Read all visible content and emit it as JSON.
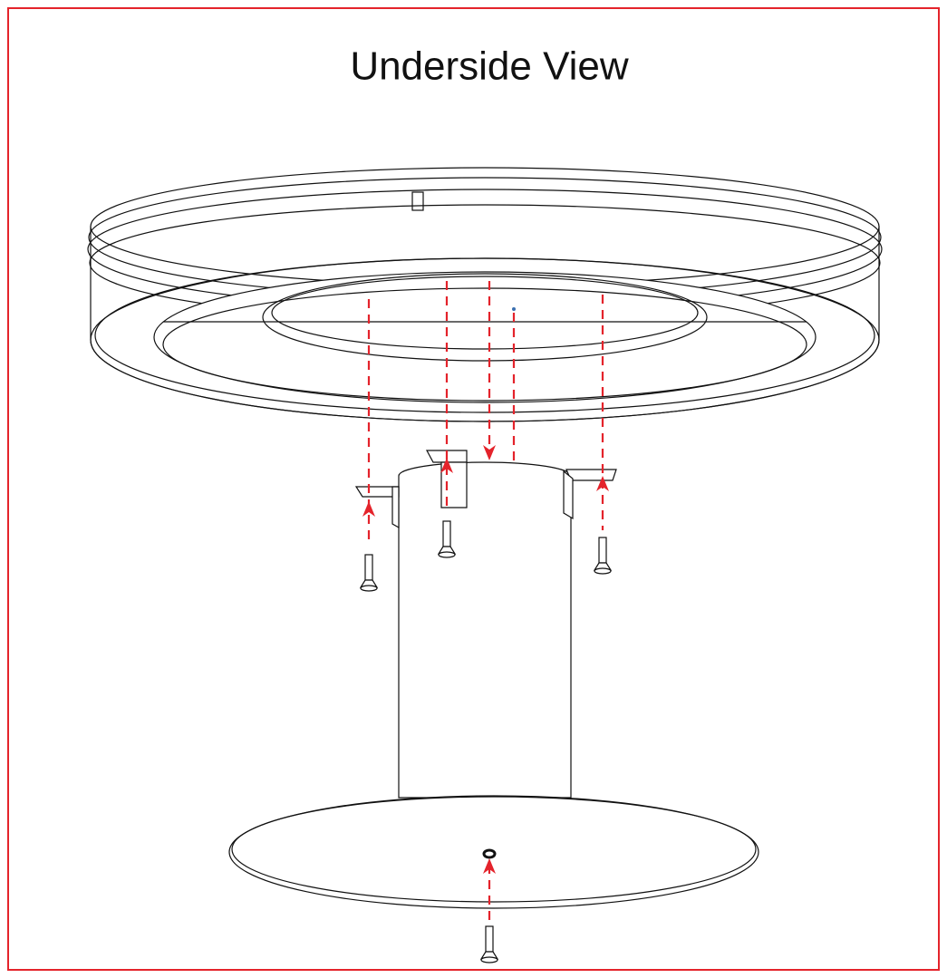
{
  "header": {
    "title": "Underside View"
  }
}
